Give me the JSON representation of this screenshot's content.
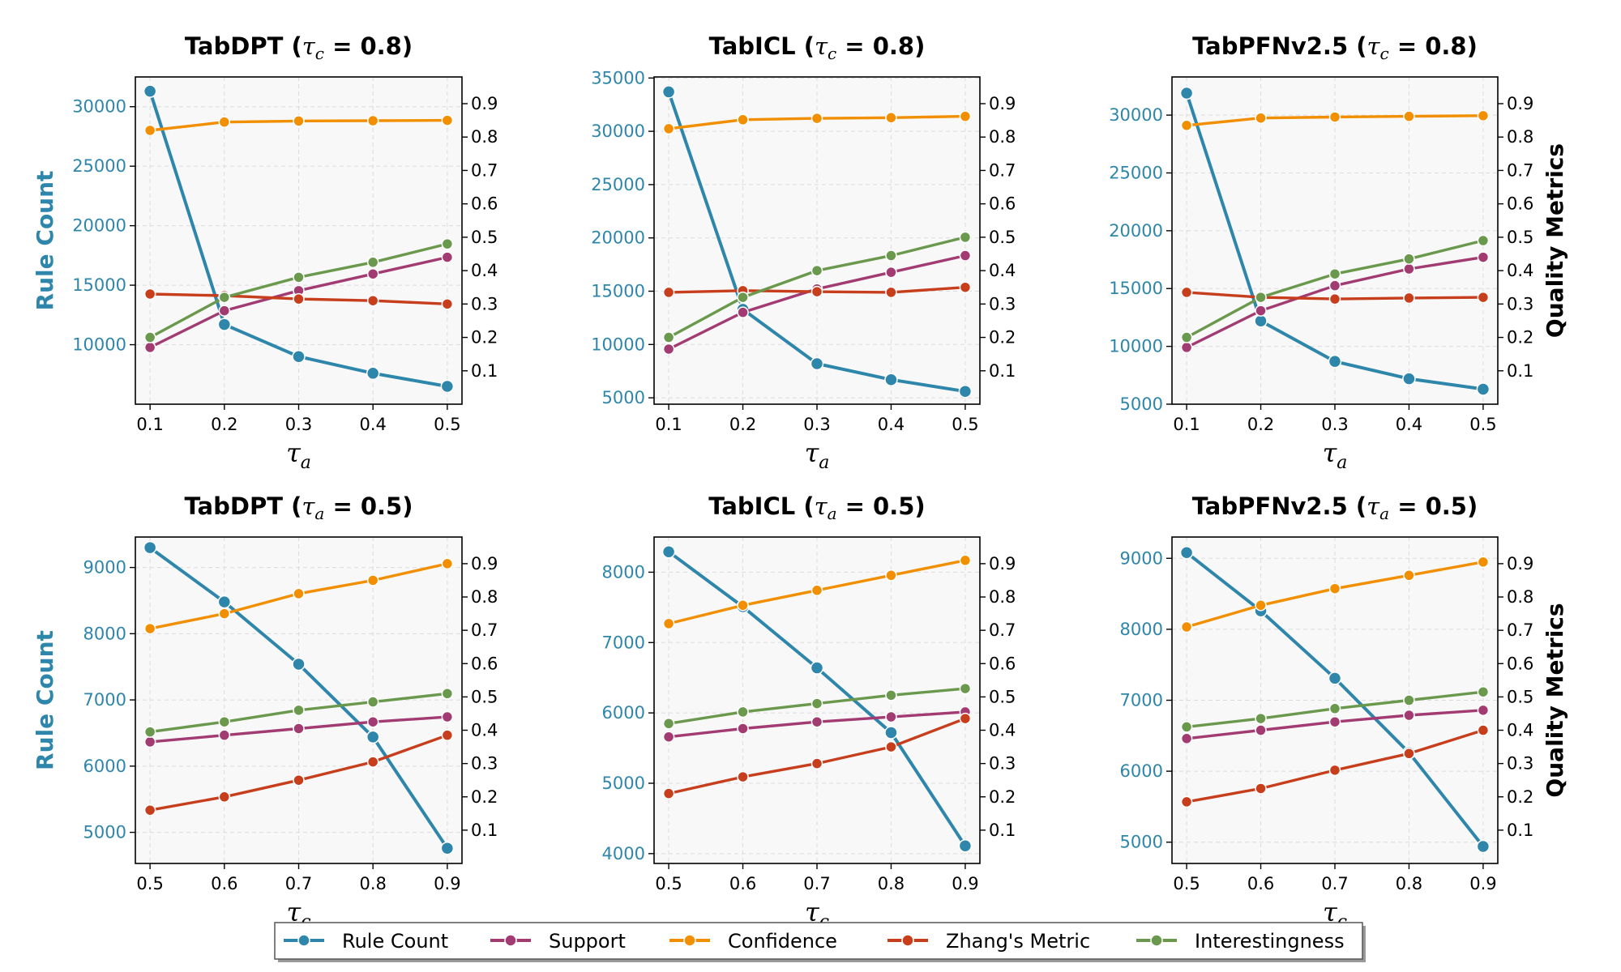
{
  "chart_data": [
    {
      "id": "p1",
      "type": "line",
      "title": {
        "main": "TabDPT",
        "sym": "τ",
        "sub": "c",
        "rest": " = 0.8)"
      },
      "xlabel": {
        "sym": "τ",
        "sub": "a"
      },
      "ylabel_left": "Rule Count",
      "ylabel_right": "",
      "x": [
        0.1,
        0.2,
        0.3,
        0.4,
        0.5
      ],
      "x_ticks": [
        "0.1",
        "0.2",
        "0.3",
        "0.4",
        "0.5"
      ],
      "left_ylim": [
        5000,
        32500
      ],
      "left_ticks": [
        10000,
        15000,
        20000,
        25000,
        30000
      ],
      "right_ylim": [
        0.0,
        0.98
      ],
      "right_ticks": [
        0.1,
        0.2,
        0.3,
        0.4,
        0.5,
        0.6,
        0.7,
        0.8,
        0.9
      ],
      "rule_count": [
        31300,
        11700,
        9000,
        7600,
        6500
      ],
      "support": [
        0.17,
        0.28,
        0.34,
        0.39,
        0.44
      ],
      "confidence": [
        0.82,
        0.845,
        0.848,
        0.849,
        0.85
      ],
      "zhang": [
        0.33,
        0.325,
        0.315,
        0.31,
        0.3
      ],
      "interestingness": [
        0.2,
        0.32,
        0.38,
        0.425,
        0.48
      ]
    },
    {
      "id": "p2",
      "type": "line",
      "title": {
        "main": "TabICL",
        "sym": "τ",
        "sub": "c",
        "rest": " = 0.8)"
      },
      "xlabel": {
        "sym": "τ",
        "sub": "a"
      },
      "ylabel_left": "",
      "ylabel_right": "",
      "x": [
        0.1,
        0.2,
        0.3,
        0.4,
        0.5
      ],
      "x_ticks": [
        "0.1",
        "0.2",
        "0.3",
        "0.4",
        "0.5"
      ],
      "left_ylim": [
        4400,
        35100
      ],
      "left_ticks": [
        5000,
        10000,
        15000,
        20000,
        25000,
        30000,
        35000
      ],
      "right_ylim": [
        0.0,
        0.98
      ],
      "right_ticks": [
        0.1,
        0.2,
        0.3,
        0.4,
        0.5,
        0.6,
        0.7,
        0.8,
        0.9
      ],
      "rule_count": [
        33700,
        13300,
        8200,
        6700,
        5600
      ],
      "support": [
        0.165,
        0.275,
        0.345,
        0.395,
        0.445
      ],
      "confidence": [
        0.825,
        0.852,
        0.856,
        0.858,
        0.862
      ],
      "zhang": [
        0.335,
        0.34,
        0.337,
        0.335,
        0.35
      ],
      "interestingness": [
        0.2,
        0.32,
        0.4,
        0.445,
        0.5
      ]
    },
    {
      "id": "p3",
      "type": "line",
      "title": {
        "main": "TabPFNv2.5",
        "sym": "τ",
        "sub": "c",
        "rest": " = 0.8)"
      },
      "xlabel": {
        "sym": "τ",
        "sub": "a"
      },
      "ylabel_left": "",
      "ylabel_right": "Quality Metrics",
      "x": [
        0.1,
        0.2,
        0.3,
        0.4,
        0.5
      ],
      "x_ticks": [
        "0.1",
        "0.2",
        "0.3",
        "0.4",
        "0.5"
      ],
      "left_ylim": [
        5000,
        33300
      ],
      "left_ticks": [
        5000,
        10000,
        15000,
        20000,
        25000,
        30000
      ],
      "right_ylim": [
        0.0,
        0.98
      ],
      "right_ticks": [
        0.1,
        0.2,
        0.3,
        0.4,
        0.5,
        0.6,
        0.7,
        0.8,
        0.9
      ],
      "rule_count": [
        31900,
        12200,
        8700,
        7200,
        6300
      ],
      "support": [
        0.17,
        0.28,
        0.355,
        0.405,
        0.44
      ],
      "confidence": [
        0.835,
        0.857,
        0.86,
        0.862,
        0.864
      ],
      "zhang": [
        0.335,
        0.32,
        0.315,
        0.318,
        0.32
      ],
      "interestingness": [
        0.2,
        0.32,
        0.39,
        0.435,
        0.49
      ]
    },
    {
      "id": "p4",
      "type": "line",
      "title": {
        "main": "TabDPT",
        "sym": "τ",
        "sub": "a",
        "rest": " = 0.5)"
      },
      "xlabel": {
        "sym": "τ",
        "sub": "c"
      },
      "ylabel_left": "Rule Count",
      "ylabel_right": "",
      "x": [
        0.5,
        0.6,
        0.7,
        0.8,
        0.9
      ],
      "x_ticks": [
        "0.5",
        "0.6",
        "0.7",
        "0.8",
        "0.9"
      ],
      "left_ylim": [
        4530,
        9460
      ],
      "left_ticks": [
        5000,
        6000,
        7000,
        8000,
        9000
      ],
      "right_ylim": [
        0.0,
        0.98
      ],
      "right_ticks": [
        0.1,
        0.2,
        0.3,
        0.4,
        0.5,
        0.6,
        0.7,
        0.8,
        0.9
      ],
      "rule_count": [
        9300,
        8480,
        7540,
        6440,
        4760
      ],
      "support": [
        0.365,
        0.385,
        0.405,
        0.425,
        0.44
      ],
      "confidence": [
        0.705,
        0.75,
        0.81,
        0.85,
        0.9
      ],
      "zhang": [
        0.16,
        0.2,
        0.25,
        0.305,
        0.385
      ],
      "interestingness": [
        0.395,
        0.425,
        0.46,
        0.485,
        0.51
      ]
    },
    {
      "id": "p5",
      "type": "line",
      "title": {
        "main": "TabICL",
        "sym": "τ",
        "sub": "a",
        "rest": " = 0.5)"
      },
      "xlabel": {
        "sym": "τ",
        "sub": "c"
      },
      "ylabel_left": "",
      "ylabel_right": "",
      "x": [
        0.5,
        0.6,
        0.7,
        0.8,
        0.9
      ],
      "x_ticks": [
        "0.5",
        "0.6",
        "0.7",
        "0.8",
        "0.9"
      ],
      "left_ylim": [
        3860,
        8500
      ],
      "left_ticks": [
        4000,
        5000,
        6000,
        7000,
        8000
      ],
      "right_ylim": [
        0.0,
        0.98
      ],
      "right_ticks": [
        0.1,
        0.2,
        0.3,
        0.4,
        0.5,
        0.6,
        0.7,
        0.8,
        0.9
      ],
      "rule_count": [
        8290,
        7510,
        6640,
        5720,
        4110
      ],
      "support": [
        0.38,
        0.405,
        0.425,
        0.44,
        0.455
      ],
      "confidence": [
        0.72,
        0.775,
        0.82,
        0.865,
        0.91
      ],
      "zhang": [
        0.21,
        0.26,
        0.3,
        0.35,
        0.435
      ],
      "interestingness": [
        0.42,
        0.455,
        0.48,
        0.505,
        0.525
      ]
    },
    {
      "id": "p6",
      "type": "line",
      "title": {
        "main": "TabPFNv2.5",
        "sym": "τ",
        "sub": "a",
        "rest": " = 0.5)"
      },
      "xlabel": {
        "sym": "τ",
        "sub": "c"
      },
      "ylabel_left": "",
      "ylabel_right": "Quality Metrics",
      "x": [
        0.5,
        0.6,
        0.7,
        0.8,
        0.9
      ],
      "x_ticks": [
        "0.5",
        "0.6",
        "0.7",
        "0.8",
        "0.9"
      ],
      "left_ylim": [
        4700,
        9300
      ],
      "left_ticks": [
        5000,
        6000,
        7000,
        8000,
        9000
      ],
      "right_ylim": [
        0.0,
        0.98
      ],
      "right_ticks": [
        0.1,
        0.2,
        0.3,
        0.4,
        0.5,
        0.6,
        0.7,
        0.8,
        0.9
      ],
      "rule_count": [
        9080,
        8260,
        7310,
        6260,
        4940
      ],
      "support": [
        0.375,
        0.4,
        0.425,
        0.445,
        0.46
      ],
      "confidence": [
        0.71,
        0.775,
        0.825,
        0.865,
        0.905
      ],
      "zhang": [
        0.185,
        0.225,
        0.28,
        0.33,
        0.4
      ],
      "interestingness": [
        0.41,
        0.435,
        0.465,
        0.49,
        0.515
      ]
    }
  ],
  "legend": [
    {
      "key": "rule_count",
      "label": "Rule Count",
      "color": "#2e86ab"
    },
    {
      "key": "support",
      "label": "Support",
      "color": "#a23b72"
    },
    {
      "key": "confidence",
      "label": "Confidence",
      "color": "#f18f01"
    },
    {
      "key": "zhang",
      "label": "Zhang's Metric",
      "color": "#c73e1d"
    },
    {
      "key": "interestingness",
      "label": "Interestingness",
      "color": "#6a994e"
    }
  ],
  "legend_position": "bottom-center",
  "grid": true
}
